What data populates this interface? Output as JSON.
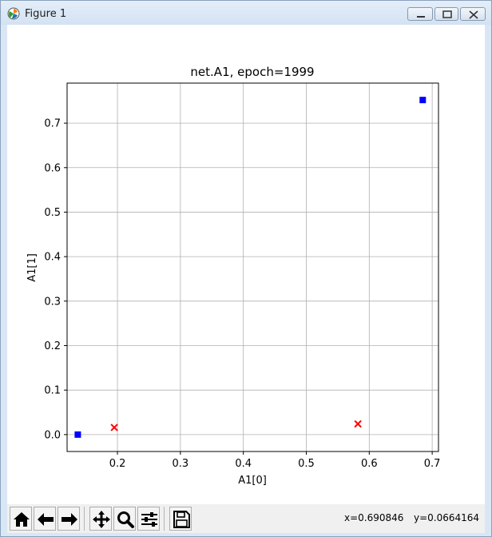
{
  "window": {
    "title": "Figure 1",
    "icon": "matplotlib-icon",
    "controls": [
      "minimize-icon",
      "maximize-icon",
      "close-icon"
    ]
  },
  "toolbar": {
    "buttons": [
      "home-icon",
      "back-arrow-icon",
      "forward-arrow-icon",
      "pan-icon",
      "zoom-icon",
      "configure-subplots-icon",
      "save-icon"
    ],
    "x_readout": "x=0.690846",
    "y_readout": "y=0.0664164"
  },
  "chart_data": {
    "type": "scatter",
    "title": "net.A1, epoch=1999",
    "xlabel": "A1[0]",
    "ylabel": "A1[1]",
    "xlim": [
      0.12,
      0.71
    ],
    "ylim": [
      -0.038,
      0.79
    ],
    "xticks": [
      0.2,
      0.3,
      0.4,
      0.5,
      0.6,
      0.7
    ],
    "yticks": [
      0.0,
      0.1,
      0.2,
      0.3,
      0.4,
      0.5,
      0.6,
      0.7
    ],
    "xtick_labels": [
      "0.2",
      "0.3",
      "0.4",
      "0.5",
      "0.6",
      "0.7"
    ],
    "ytick_labels": [
      "0.0",
      "0.1",
      "0.2",
      "0.3",
      "0.4",
      "0.5",
      "0.6",
      "0.7"
    ],
    "grid": true,
    "series": [
      {
        "marker": "square",
        "color": "#0000ff",
        "points": [
          [
            0.137,
            0.0
          ],
          [
            0.685,
            0.752
          ]
        ]
      },
      {
        "marker": "x",
        "color": "#ff0000",
        "points": [
          [
            0.195,
            0.016
          ],
          [
            0.582,
            0.024
          ]
        ]
      }
    ]
  }
}
